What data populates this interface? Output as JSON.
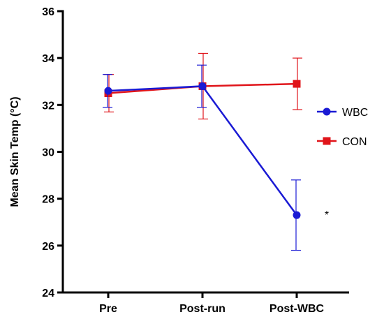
{
  "chart_data": {
    "type": "line",
    "title": "",
    "xlabel": "",
    "ylabel": "Mean Skin Temp (°C)",
    "categories": [
      "Pre",
      "Post-run",
      "Post-WBC"
    ],
    "ylim": [
      24,
      36
    ],
    "yticks": [
      24,
      26,
      28,
      30,
      32,
      34,
      36
    ],
    "grid": false,
    "legend_position": "right",
    "series": [
      {
        "name": "WBC",
        "color": "#1a1ad4",
        "marker": "circle",
        "values": [
          32.6,
          32.8,
          27.3
        ],
        "error": [
          0.7,
          0.9,
          1.5
        ]
      },
      {
        "name": "CON",
        "color": "#e0141a",
        "marker": "square",
        "values": [
          32.5,
          32.8,
          32.9
        ],
        "error": [
          0.8,
          1.4,
          1.1
        ]
      }
    ],
    "annotations": [
      {
        "text": "*",
        "category": "Post-WBC",
        "y": 27.3
      }
    ]
  }
}
